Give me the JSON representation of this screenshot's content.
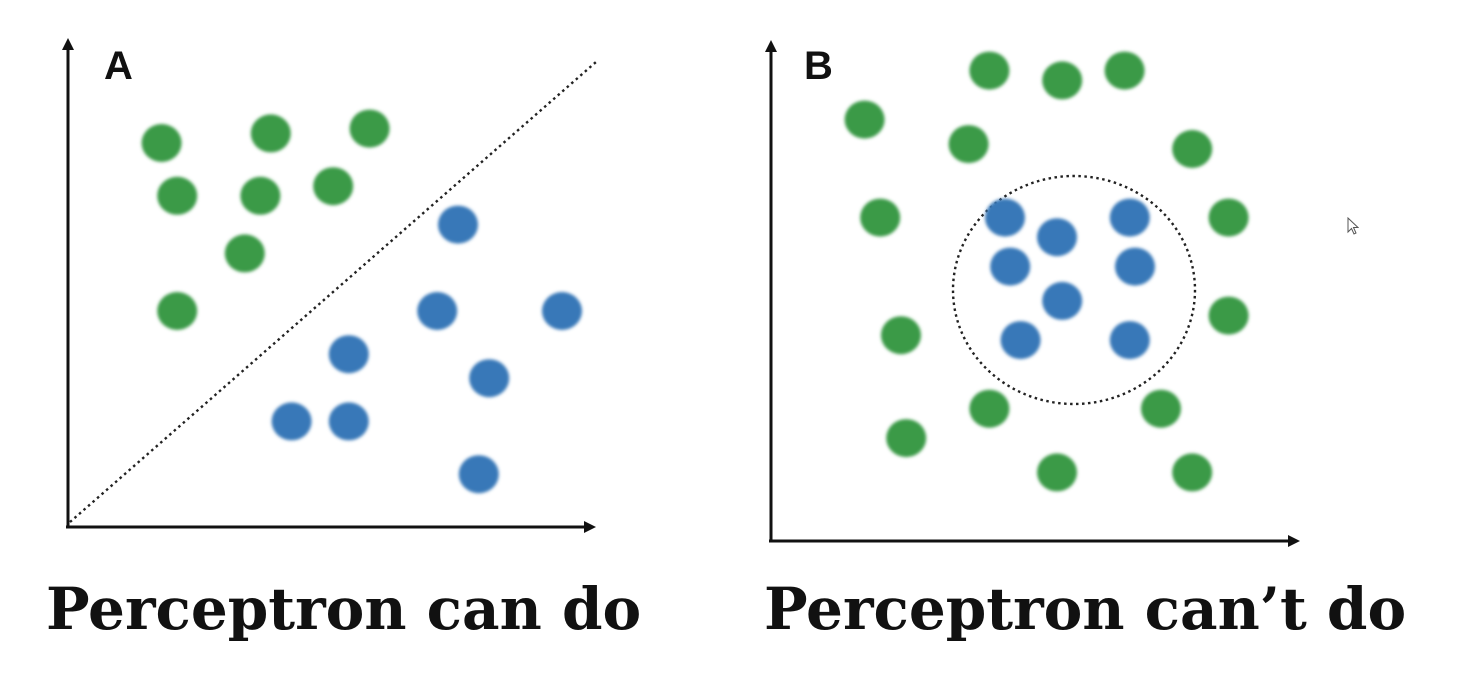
{
  "panels": [
    {
      "id": "A",
      "label": "A",
      "caption": "Perceptron can do",
      "boundary": "line",
      "class_colors": {
        "green": "#3a9a47",
        "blue": "#3978b8"
      },
      "green_points": [
        [
          0.18,
          0.8
        ],
        [
          0.39,
          0.82
        ],
        [
          0.58,
          0.83
        ],
        [
          0.21,
          0.69
        ],
        [
          0.37,
          0.69
        ],
        [
          0.51,
          0.71
        ],
        [
          0.34,
          0.57
        ],
        [
          0.21,
          0.45
        ]
      ],
      "blue_points": [
        [
          0.75,
          0.63
        ],
        [
          0.95,
          0.45
        ],
        [
          0.71,
          0.45
        ],
        [
          0.54,
          0.36
        ],
        [
          0.81,
          0.31
        ],
        [
          0.43,
          0.22
        ],
        [
          0.54,
          0.22
        ],
        [
          0.79,
          0.11
        ]
      ]
    },
    {
      "id": "B",
      "label": "B",
      "caption": "Perceptron can’t do",
      "boundary": "circle",
      "class_colors": {
        "green": "#3a9a47",
        "blue": "#3978b8"
      },
      "green_points": [
        [
          0.42,
          0.96
        ],
        [
          0.56,
          0.94
        ],
        [
          0.68,
          0.96
        ],
        [
          0.18,
          0.86
        ],
        [
          0.38,
          0.81
        ],
        [
          0.81,
          0.8
        ],
        [
          0.21,
          0.66
        ],
        [
          0.88,
          0.66
        ],
        [
          0.25,
          0.42
        ],
        [
          0.88,
          0.46
        ],
        [
          0.42,
          0.27
        ],
        [
          0.75,
          0.27
        ],
        [
          0.26,
          0.21
        ],
        [
          0.55,
          0.14
        ],
        [
          0.81,
          0.14
        ]
      ],
      "blue_points": [
        [
          0.45,
          0.66
        ],
        [
          0.55,
          0.62
        ],
        [
          0.69,
          0.66
        ],
        [
          0.46,
          0.56
        ],
        [
          0.7,
          0.56
        ],
        [
          0.56,
          0.49
        ],
        [
          0.48,
          0.41
        ],
        [
          0.69,
          0.41
        ]
      ]
    }
  ],
  "cursor": "pointer-cursor-icon"
}
